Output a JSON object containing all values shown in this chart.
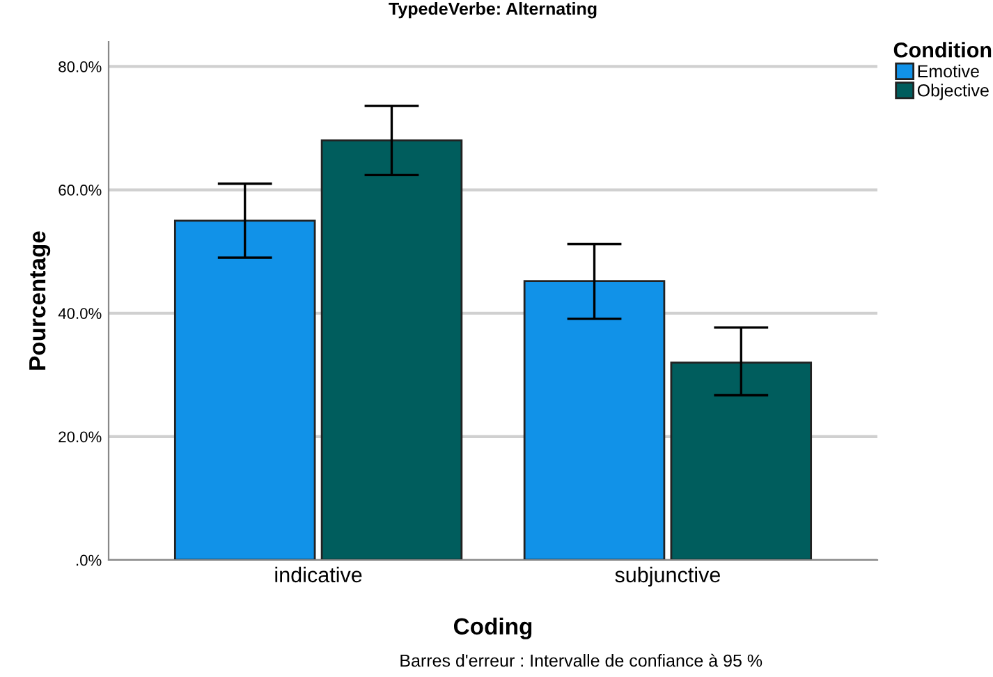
{
  "chart_data": {
    "type": "bar",
    "title": "TypedeVerbe: Alternating",
    "xlabel": "Coding",
    "ylabel": "Pourcentage",
    "legend_title": "Condition",
    "categories": [
      "indicative",
      "subjunctive"
    ],
    "series": [
      {
        "name": "Emotive",
        "color": "#1192e8",
        "values": [
          55.0,
          45.2
        ],
        "errors": [
          [
            49.0,
            61.0
          ],
          [
            39.1,
            51.2
          ]
        ]
      },
      {
        "name": "Objective",
        "color": "#005d5d",
        "values": [
          68.0,
          32.0
        ],
        "errors": [
          [
            62.4,
            73.6
          ],
          [
            26.7,
            37.7
          ]
        ]
      }
    ],
    "ylim": [
      0,
      84
    ],
    "yticks": [
      {
        "value": 0,
        "label": ".0%"
      },
      {
        "value": 20,
        "label": "20.0%"
      },
      {
        "value": 40,
        "label": "40.0%"
      },
      {
        "value": 60,
        "label": "60.0%"
      },
      {
        "value": 80,
        "label": "80.0%"
      }
    ],
    "grid": "y",
    "legend": "top right",
    "annotations": [
      "Barres d'erreur : Intervalle de confiance à 95 %"
    ]
  }
}
